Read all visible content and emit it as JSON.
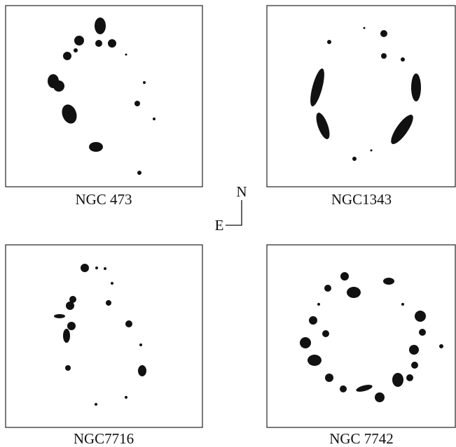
{
  "panels": [
    {
      "label": "NGC 473"
    },
    {
      "label": "NGC1343"
    },
    {
      "label": "NGC7716"
    },
    {
      "label": "NGC 7742"
    }
  ],
  "compass": {
    "north": "N",
    "east": "E"
  }
}
